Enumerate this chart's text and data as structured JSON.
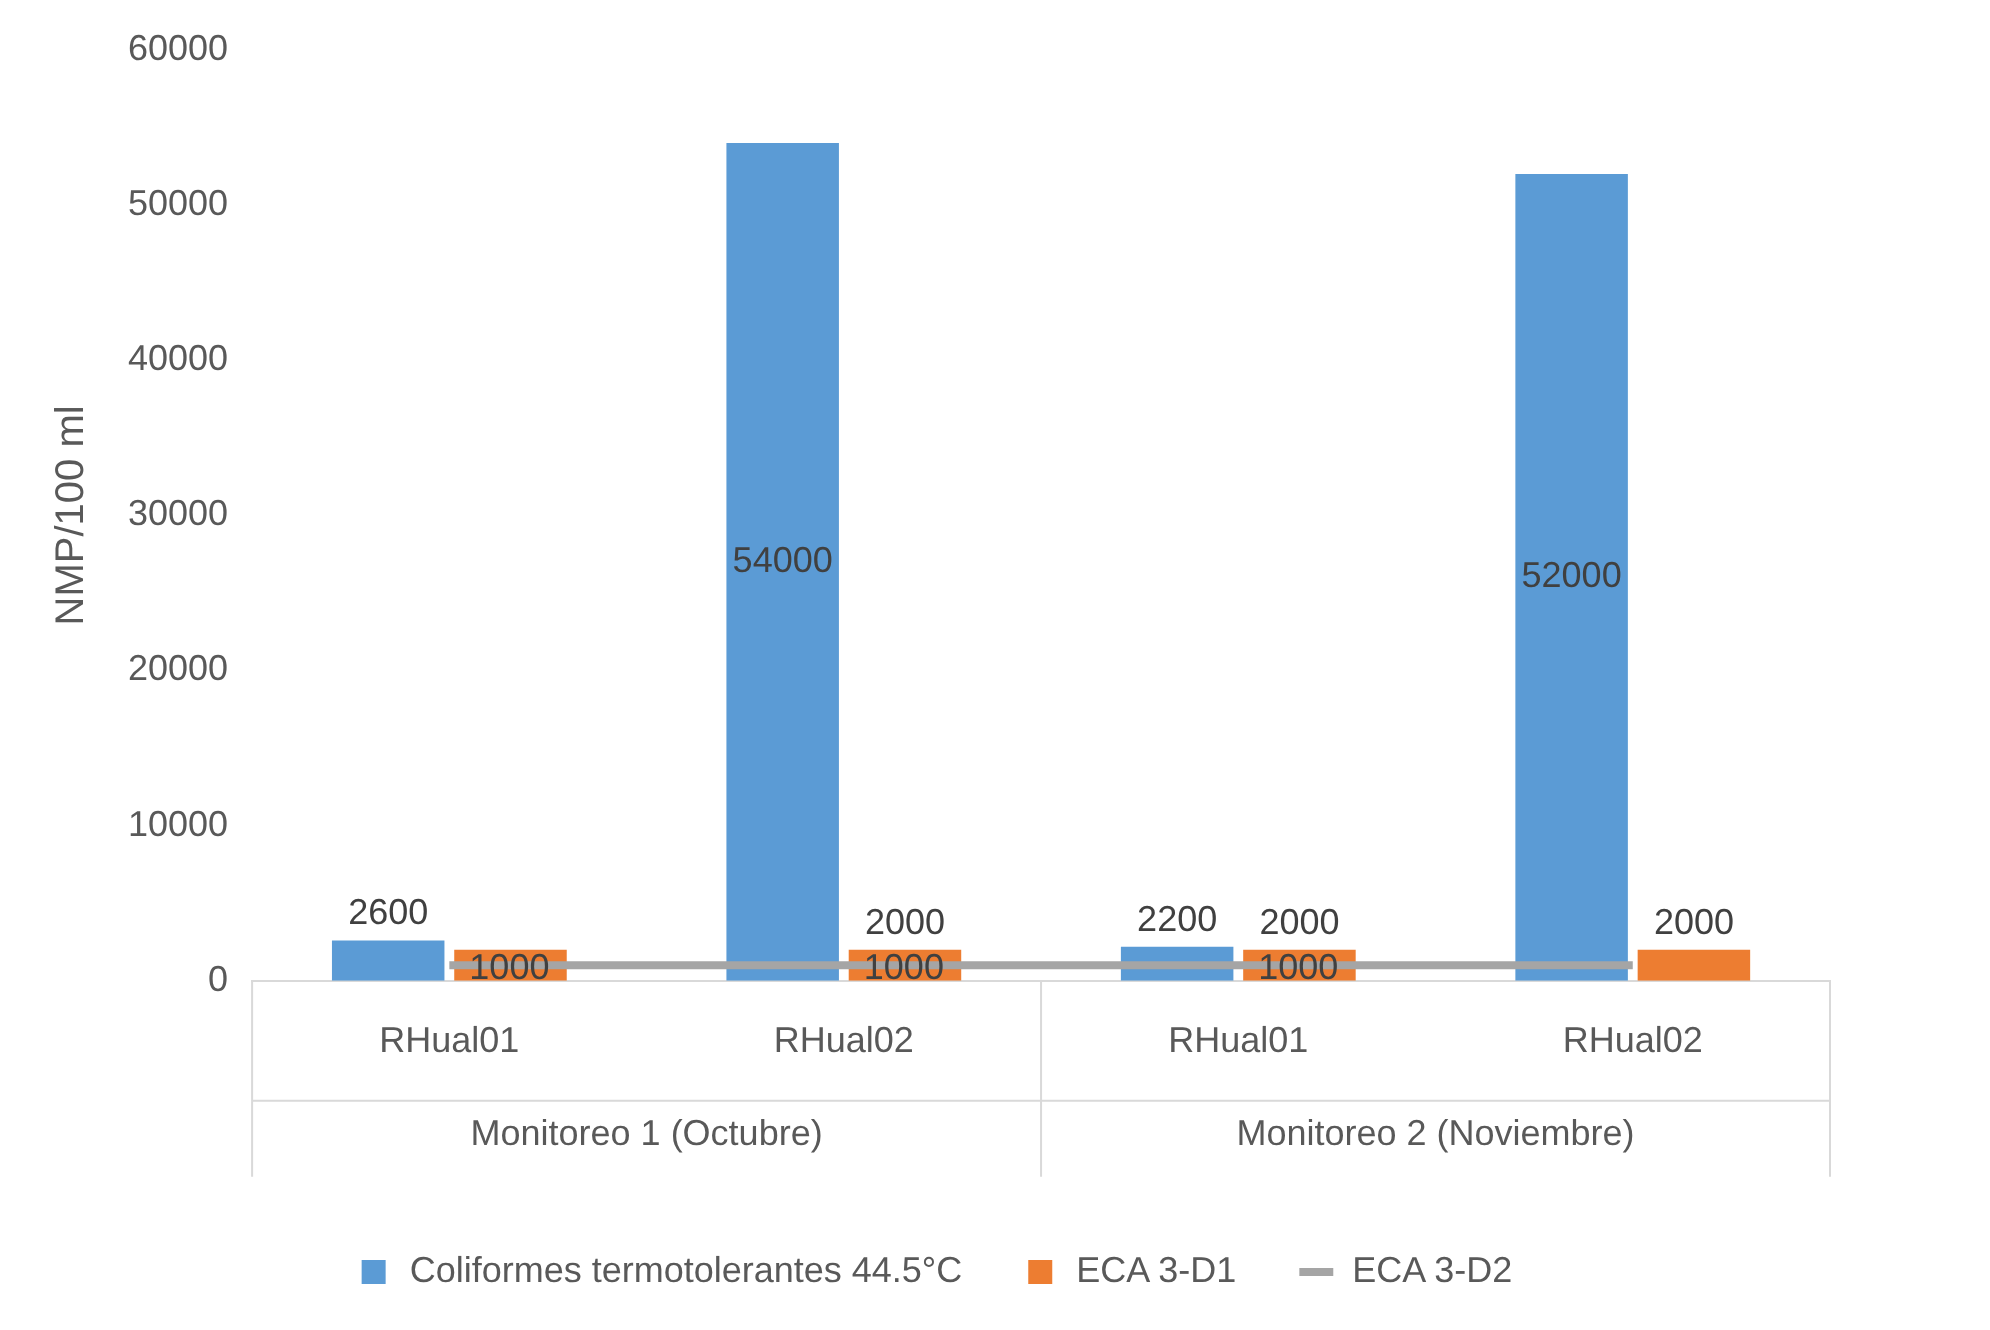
{
  "chart_data": {
    "type": "bar",
    "ylabel": "NMP/100 ml",
    "categories": [
      "RHual01",
      "RHual02",
      "RHual01",
      "RHual02"
    ],
    "annotations": [
      "Monitoreo 1 (Octubre)",
      "Monitoreo 2 (Noviembre)"
    ],
    "series": [
      {
        "name": "Coliformes termotolerantes 44.5°C",
        "color": "#5b9bd5",
        "values": [
          2600,
          54000,
          2200,
          52000
        ],
        "value_labels": [
          "2600",
          "54000",
          "2200",
          "52000"
        ]
      },
      {
        "name": "ECA 3-D1",
        "color": "#ed7d31",
        "values": [
          2000,
          2000,
          2000,
          2000
        ],
        "value_labels": [
          null,
          "2000",
          "2000",
          "2000"
        ]
      },
      {
        "name": "ECA 3-D2",
        "type": "line",
        "color": "#a5a5a5",
        "values": [
          1000,
          1000,
          1000,
          1000
        ],
        "value_labels": [
          "1000",
          "1000",
          "1000",
          null
        ]
      }
    ],
    "ylim": [
      0,
      60000
    ],
    "yticks": [
      0,
      10000,
      20000,
      30000,
      40000,
      50000,
      60000
    ],
    "grid": false,
    "legend": "bottom",
    "marker": "none"
  }
}
